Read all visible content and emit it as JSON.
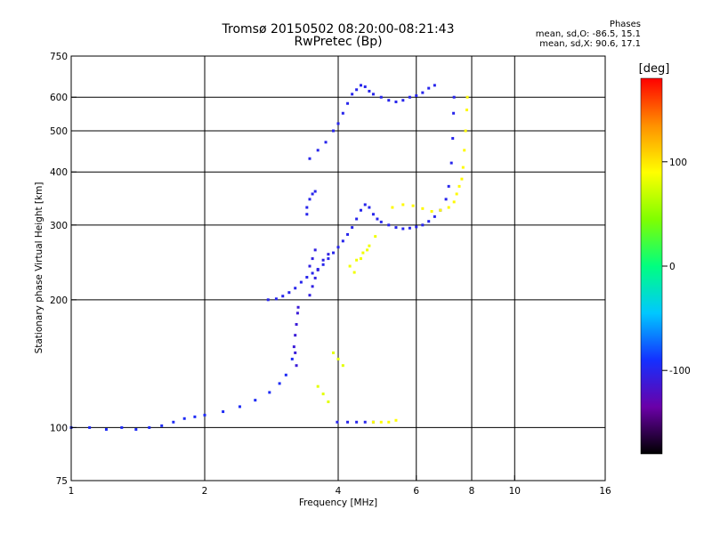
{
  "header": {
    "title": "Tromsø 20150502 08:20:00-08:21:43",
    "subtitle": "RwPretec (Bp)",
    "phases_title": "Phases",
    "phases_o": "mean, sd,O:  -86.5, 15.1",
    "phases_x": "mean, sd,X:  90.6, 17.1"
  },
  "colorbar": {
    "label": "[deg]",
    "ticks": [
      {
        "value": 100,
        "label": "100"
      },
      {
        "value": 0,
        "label": "0"
      },
      {
        "value": -100,
        "label": "-100"
      }
    ],
    "range": [
      -180,
      180
    ],
    "colors": [
      "#000000",
      "#6a00a8",
      "#1430ff",
      "#00c8ff",
      "#00ff80",
      "#80ff00",
      "#ffff00",
      "#ff9000",
      "#ff0000"
    ]
  },
  "chart_data": {
    "type": "scatter",
    "title": "Tromsø 20150502 08:20:00-08:21:43",
    "subtitle": "RwPretec (Bp)",
    "xlabel": "Frequency [MHz]",
    "ylabel": "Stationary phase Virtual Height [km]",
    "xscale": "log",
    "yscale": "log",
    "xlim": [
      1,
      16
    ],
    "ylim": [
      75,
      750
    ],
    "x_ticks": [
      1,
      2,
      4,
      6,
      8,
      10,
      16
    ],
    "y_ticks": [
      75,
      100,
      200,
      300,
      400,
      500,
      600,
      750
    ],
    "grid": true,
    "color_by": "phase [deg]",
    "series": [
      {
        "points": [
          [
            1.0,
            100
          ],
          [
            1.1,
            100
          ],
          [
            1.2,
            99
          ],
          [
            1.3,
            100
          ],
          [
            1.4,
            99
          ],
          [
            1.5,
            100
          ],
          [
            1.6,
            101
          ],
          [
            1.7,
            103
          ],
          [
            1.8,
            105
          ],
          [
            1.9,
            106
          ],
          [
            2.0,
            107
          ],
          [
            2.2,
            109
          ],
          [
            2.4,
            112
          ],
          [
            2.6,
            116
          ],
          [
            2.8,
            121
          ],
          [
            2.95,
            127
          ],
          [
            3.05,
            133
          ],
          [
            3.15,
            145
          ]
        ],
        "phase": -95
      },
      {
        "points": [
          [
            3.18,
            155
          ],
          [
            3.2,
            165
          ],
          [
            3.22,
            175
          ],
          [
            3.24,
            186
          ],
          [
            3.25,
            192
          ],
          [
            3.2,
            150
          ],
          [
            3.22,
            140
          ]
        ],
        "phase": -110
      },
      {
        "points": [
          [
            2.78,
            200
          ],
          [
            2.9,
            201
          ],
          [
            3.0,
            204
          ],
          [
            3.1,
            208
          ],
          [
            3.2,
            213
          ],
          [
            3.3,
            220
          ],
          [
            3.4,
            226
          ],
          [
            3.5,
            231
          ],
          [
            3.6,
            236
          ],
          [
            3.7,
            242
          ],
          [
            3.8,
            250
          ],
          [
            3.9,
            258
          ],
          [
            4.0,
            266
          ],
          [
            4.1,
            275
          ],
          [
            4.2,
            285
          ],
          [
            4.3,
            296
          ],
          [
            4.4,
            310
          ],
          [
            4.5,
            325
          ],
          [
            4.6,
            335
          ],
          [
            4.7,
            330
          ],
          [
            4.8,
            318
          ],
          [
            4.9,
            310
          ],
          [
            5.0,
            305
          ],
          [
            5.2,
            300
          ],
          [
            5.4,
            296
          ],
          [
            5.6,
            294
          ],
          [
            5.8,
            295
          ],
          [
            6.0,
            297
          ],
          [
            6.2,
            300
          ],
          [
            6.4,
            306
          ],
          [
            6.6,
            314
          ],
          [
            6.8,
            325
          ],
          [
            7.0,
            345
          ],
          [
            7.1,
            370
          ],
          [
            7.2,
            420
          ],
          [
            7.25,
            480
          ],
          [
            7.28,
            550
          ],
          [
            7.3,
            600
          ]
        ],
        "phase": -100
      },
      {
        "points": [
          [
            3.45,
            205
          ],
          [
            3.5,
            215
          ],
          [
            3.55,
            225
          ],
          [
            3.6,
            235
          ],
          [
            3.7,
            248
          ],
          [
            3.8,
            256
          ],
          [
            3.45,
            240
          ],
          [
            3.5,
            250
          ],
          [
            3.55,
            262
          ]
        ],
        "phase": -105
      },
      {
        "points": [
          [
            3.4,
            330
          ],
          [
            3.45,
            345
          ],
          [
            3.5,
            355
          ],
          [
            3.55,
            360
          ],
          [
            3.4,
            318
          ]
        ],
        "phase": -100
      },
      {
        "points": [
          [
            3.45,
            430
          ],
          [
            3.6,
            450
          ],
          [
            3.75,
            470
          ],
          [
            3.9,
            500
          ],
          [
            4.0,
            520
          ],
          [
            4.1,
            550
          ],
          [
            4.2,
            580
          ],
          [
            4.3,
            610
          ],
          [
            4.4,
            625
          ],
          [
            4.5,
            640
          ],
          [
            4.6,
            635
          ],
          [
            4.7,
            620
          ],
          [
            4.8,
            610
          ],
          [
            5.0,
            600
          ],
          [
            5.2,
            590
          ],
          [
            5.4,
            585
          ],
          [
            5.6,
            590
          ],
          [
            5.8,
            600
          ],
          [
            6.0,
            605
          ],
          [
            6.2,
            615
          ],
          [
            6.4,
            630
          ],
          [
            6.6,
            640
          ]
        ],
        "phase": -100
      },
      {
        "points": [
          [
            4.25,
            240
          ],
          [
            4.4,
            248
          ],
          [
            4.55,
            258
          ],
          [
            4.7,
            268
          ],
          [
            4.85,
            282
          ],
          [
            4.35,
            232
          ],
          [
            4.5,
            250
          ],
          [
            4.65,
            262
          ]
        ],
        "phase": 85
      },
      {
        "points": [
          [
            5.3,
            330
          ],
          [
            5.6,
            335
          ],
          [
            5.9,
            333
          ],
          [
            6.2,
            328
          ],
          [
            6.5,
            323
          ],
          [
            6.8,
            325
          ],
          [
            7.1,
            330
          ],
          [
            7.3,
            340
          ],
          [
            7.4,
            355
          ],
          [
            7.5,
            370
          ],
          [
            7.6,
            385
          ],
          [
            7.65,
            410
          ],
          [
            7.7,
            450
          ],
          [
            7.75,
            500
          ],
          [
            7.8,
            560
          ],
          [
            7.82,
            600
          ]
        ],
        "phase": 92
      },
      {
        "points": [
          [
            3.98,
            103
          ],
          [
            4.2,
            103
          ],
          [
            4.4,
            103
          ],
          [
            4.6,
            103
          ],
          [
            4.8,
            103
          ]
        ],
        "phase": -100
      },
      {
        "points": [
          [
            4.8,
            103
          ],
          [
            5.0,
            103
          ],
          [
            5.2,
            103
          ],
          [
            5.4,
            104
          ]
        ],
        "phase": 90
      },
      {
        "points": [
          [
            3.9,
            150
          ],
          [
            4.0,
            145
          ],
          [
            4.1,
            140
          ],
          [
            3.6,
            125
          ],
          [
            3.7,
            120
          ],
          [
            3.8,
            115
          ]
        ],
        "phase": 80
      }
    ]
  }
}
